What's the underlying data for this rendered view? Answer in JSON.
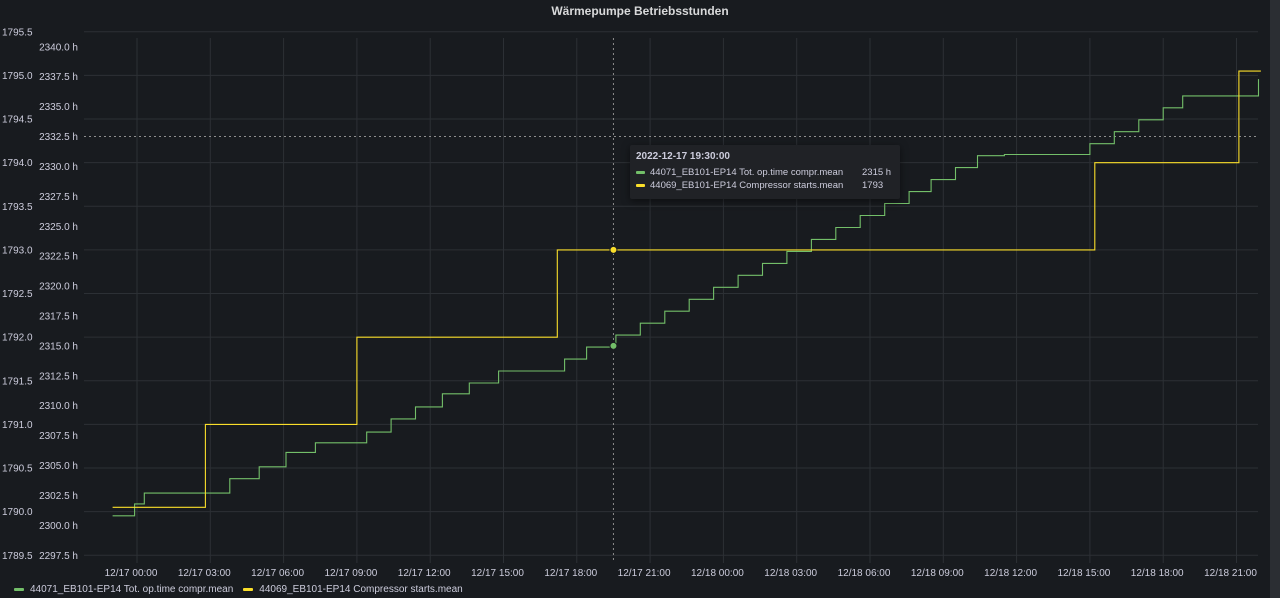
{
  "panel": {
    "title": "Wärmepumpe Betriebsstunden"
  },
  "colors": {
    "green": "#73bf69",
    "yellow": "#fade2a",
    "grid": "#2c3035",
    "background": "#181b1f"
  },
  "tooltip": {
    "time": "2022-12-17 19:30:00",
    "rows": [
      {
        "name": "44071_EB101-EP14 Tot. op.time compr.mean",
        "value": "2315 h",
        "color": "#73bf69"
      },
      {
        "name": "44069_EB101-EP14 Compressor starts.mean",
        "value": "1793",
        "color": "#fade2a"
      }
    ]
  },
  "legend": [
    {
      "name": "44071_EB101-EP14 Tot. op.time compr.mean",
      "color": "#73bf69"
    },
    {
      "name": "44069_EB101-EP14 Compressor starts.mean",
      "color": "#fade2a"
    }
  ],
  "chart_data": {
    "type": "line",
    "title": "Wärmepumpe Betriebsstunden",
    "x_ticks": [
      "12/17 00:00",
      "12/17 03:00",
      "12/17 06:00",
      "12/17 09:00",
      "12/17 12:00",
      "12/17 15:00",
      "12/17 18:00",
      "12/17 21:00",
      "12/18 00:00",
      "12/18 03:00",
      "12/18 06:00",
      "12/18 09:00",
      "12/18 12:00",
      "12/18 15:00",
      "12/18 18:00",
      "12/18 21:00"
    ],
    "x_range_hours": [
      -1.5,
      46
    ],
    "left_axis": {
      "ticks": [
        "1789.5",
        "1790.0",
        "1790.5",
        "1791.0",
        "1791.5",
        "1792.0",
        "1792.5",
        "1793.0",
        "1793.5",
        "1794.0",
        "1794.5",
        "1795.0",
        "1795.5"
      ],
      "range": [
        1789.5,
        1795.5
      ]
    },
    "right_axis": {
      "ticks": [
        "2297.5 h",
        "2300.0 h",
        "2302.5 h",
        "2305.0 h",
        "2307.5 h",
        "2310.0 h",
        "2312.5 h",
        "2315.0 h",
        "2317.5 h",
        "2320.0 h",
        "2322.5 h",
        "2325.0 h",
        "2327.5 h",
        "2330.0 h",
        "2332.5 h",
        "2335.0 h",
        "2337.5 h",
        "2340.0 h"
      ],
      "range": [
        2297.5,
        2340.0
      ]
    },
    "grid": true,
    "crosshair": {
      "x_hour": 19.5,
      "y": 2332.5
    },
    "series": [
      {
        "name": "44071_EB101-EP14 Tot. op.time compr.mean",
        "axis": "right",
        "color": "#73bf69",
        "step": "after",
        "points": [
          [
            -1,
            2300.8
          ],
          [
            -0.1,
            2301.8
          ],
          [
            0.3,
            2302.7
          ],
          [
            3.8,
            2303.9
          ],
          [
            5.0,
            2304.9
          ],
          [
            6.1,
            2306.1
          ],
          [
            7.3,
            2306.9
          ],
          [
            9.4,
            2307.8
          ],
          [
            10.4,
            2308.9
          ],
          [
            11.4,
            2309.9
          ],
          [
            12.5,
            2311.0
          ],
          [
            13.6,
            2311.9
          ],
          [
            14.8,
            2312.9
          ],
          [
            17.5,
            2313.9
          ],
          [
            18.4,
            2314.9
          ],
          [
            19.5,
            2315.0
          ],
          [
            19.6,
            2315.9
          ],
          [
            20.6,
            2316.9
          ],
          [
            21.6,
            2317.9
          ],
          [
            22.6,
            2318.9
          ],
          [
            23.6,
            2319.9
          ],
          [
            24.6,
            2320.9
          ],
          [
            25.6,
            2321.9
          ],
          [
            26.6,
            2322.9
          ],
          [
            27.6,
            2323.9
          ],
          [
            28.6,
            2324.9
          ],
          [
            29.6,
            2325.9
          ],
          [
            30.6,
            2326.9
          ],
          [
            31.6,
            2327.9
          ],
          [
            32.5,
            2328.9
          ],
          [
            33.5,
            2329.9
          ],
          [
            34.4,
            2330.9
          ],
          [
            35.5,
            2331.0
          ],
          [
            39.0,
            2331.9
          ],
          [
            40.0,
            2332.9
          ],
          [
            41.0,
            2333.9
          ],
          [
            42.0,
            2334.9
          ],
          [
            42.8,
            2335.9
          ],
          [
            45.0,
            2335.9
          ],
          [
            45.9,
            2337.3
          ]
        ]
      },
      {
        "name": "44069_EB101-EP14 Compressor starts.mean",
        "axis": "left",
        "color": "#fade2a",
        "step": "after",
        "points": [
          [
            -1,
            1790.05
          ],
          [
            2.8,
            1791.0
          ],
          [
            9.0,
            1792.0
          ],
          [
            17.2,
            1793.0
          ],
          [
            39.2,
            1794.0
          ],
          [
            45.1,
            1795.05
          ],
          [
            46,
            1795.05
          ]
        ]
      }
    ]
  }
}
